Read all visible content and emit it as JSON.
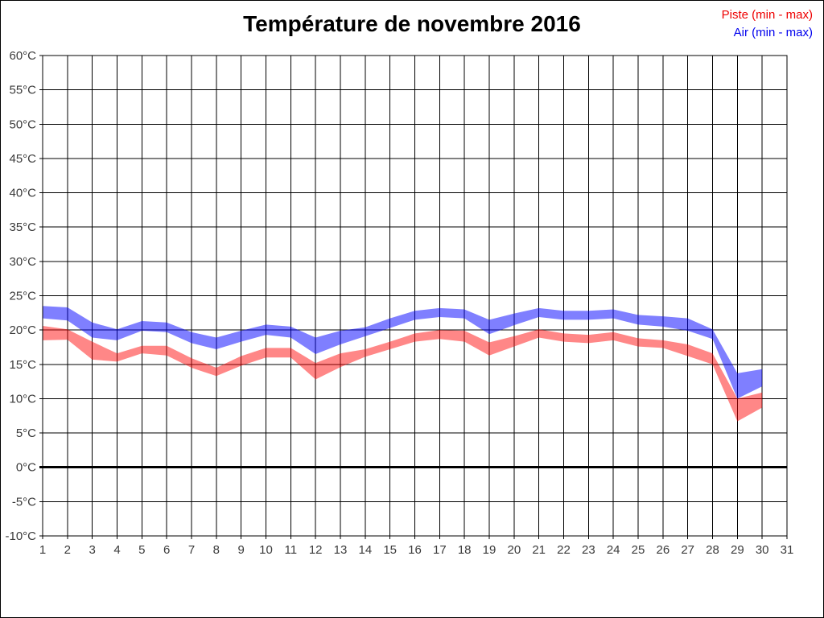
{
  "title": "Température de novembre 2016",
  "legend": [
    {
      "label": "Piste (min - max)",
      "color": "#ee0000"
    },
    {
      "label": "Air (min - max)",
      "color": "#0000ee"
    }
  ],
  "chart_data": {
    "type": "area",
    "subtype": "min-max-range-bands",
    "title": "Température de novembre 2016",
    "xlabel": "",
    "ylabel": "",
    "y_unit": "°C",
    "ylim": [
      -10,
      60
    ],
    "y_tick_step": 5,
    "x_axis_ticks": [
      1,
      2,
      3,
      4,
      5,
      6,
      7,
      8,
      9,
      10,
      11,
      12,
      13,
      14,
      15,
      16,
      17,
      18,
      19,
      20,
      21,
      22,
      23,
      24,
      25,
      26,
      27,
      28,
      29,
      30,
      31
    ],
    "x": [
      1,
      2,
      3,
      4,
      5,
      6,
      7,
      8,
      9,
      10,
      11,
      12,
      13,
      14,
      15,
      16,
      17,
      18,
      19,
      20,
      21,
      22,
      23,
      24,
      25,
      26,
      27,
      28,
      29,
      30
    ],
    "grid": true,
    "zero_line": true,
    "legend_position": "top-right",
    "series": [
      {
        "name": "Piste (min - max)",
        "fill": "rgba(255,0,0,0.47)",
        "legend_color": "#ee0000",
        "min": [
          18.5,
          18.6,
          15.7,
          15.4,
          16.6,
          16.3,
          14.5,
          13.3,
          14.8,
          16.0,
          16.0,
          12.8,
          14.6,
          16.1,
          17.2,
          18.3,
          18.7,
          18.3,
          16.3,
          17.6,
          18.9,
          18.3,
          18.1,
          18.5,
          17.6,
          17.4,
          16.2,
          15.0,
          6.7,
          8.7
        ],
        "max": [
          20.6,
          20.1,
          18.3,
          16.6,
          17.7,
          17.7,
          15.9,
          14.5,
          16.2,
          17.4,
          17.4,
          15.2,
          16.6,
          17.2,
          18.3,
          19.5,
          20.0,
          19.9,
          18.2,
          19.1,
          20.1,
          19.5,
          19.3,
          19.7,
          18.8,
          18.5,
          17.9,
          16.6,
          10.0,
          10.9
        ]
      },
      {
        "name": "Air (min - max)",
        "fill": "rgba(0,0,255,0.5)",
        "legend_color": "#0000ee",
        "min": [
          21.7,
          21.4,
          18.9,
          18.5,
          19.9,
          19.7,
          18.1,
          17.2,
          18.3,
          19.3,
          18.9,
          16.5,
          17.9,
          19.1,
          20.3,
          21.5,
          21.9,
          21.7,
          19.4,
          20.7,
          21.9,
          21.5,
          21.5,
          21.7,
          20.8,
          20.5,
          19.9,
          18.7,
          10.0,
          11.8
        ],
        "max": [
          23.5,
          23.3,
          21.1,
          20.1,
          21.3,
          21.1,
          19.7,
          18.9,
          19.9,
          20.8,
          20.5,
          18.9,
          19.9,
          20.4,
          21.7,
          22.8,
          23.2,
          23.0,
          21.5,
          22.4,
          23.2,
          22.8,
          22.8,
          23.0,
          22.2,
          22.0,
          21.7,
          20.1,
          13.7,
          14.3
        ]
      }
    ],
    "colors": {
      "grid": "#000000",
      "plot_border": "#000000",
      "zero_line": "#000000",
      "tick_label": "#3a3a3a",
      "background": "#ffffff"
    }
  }
}
